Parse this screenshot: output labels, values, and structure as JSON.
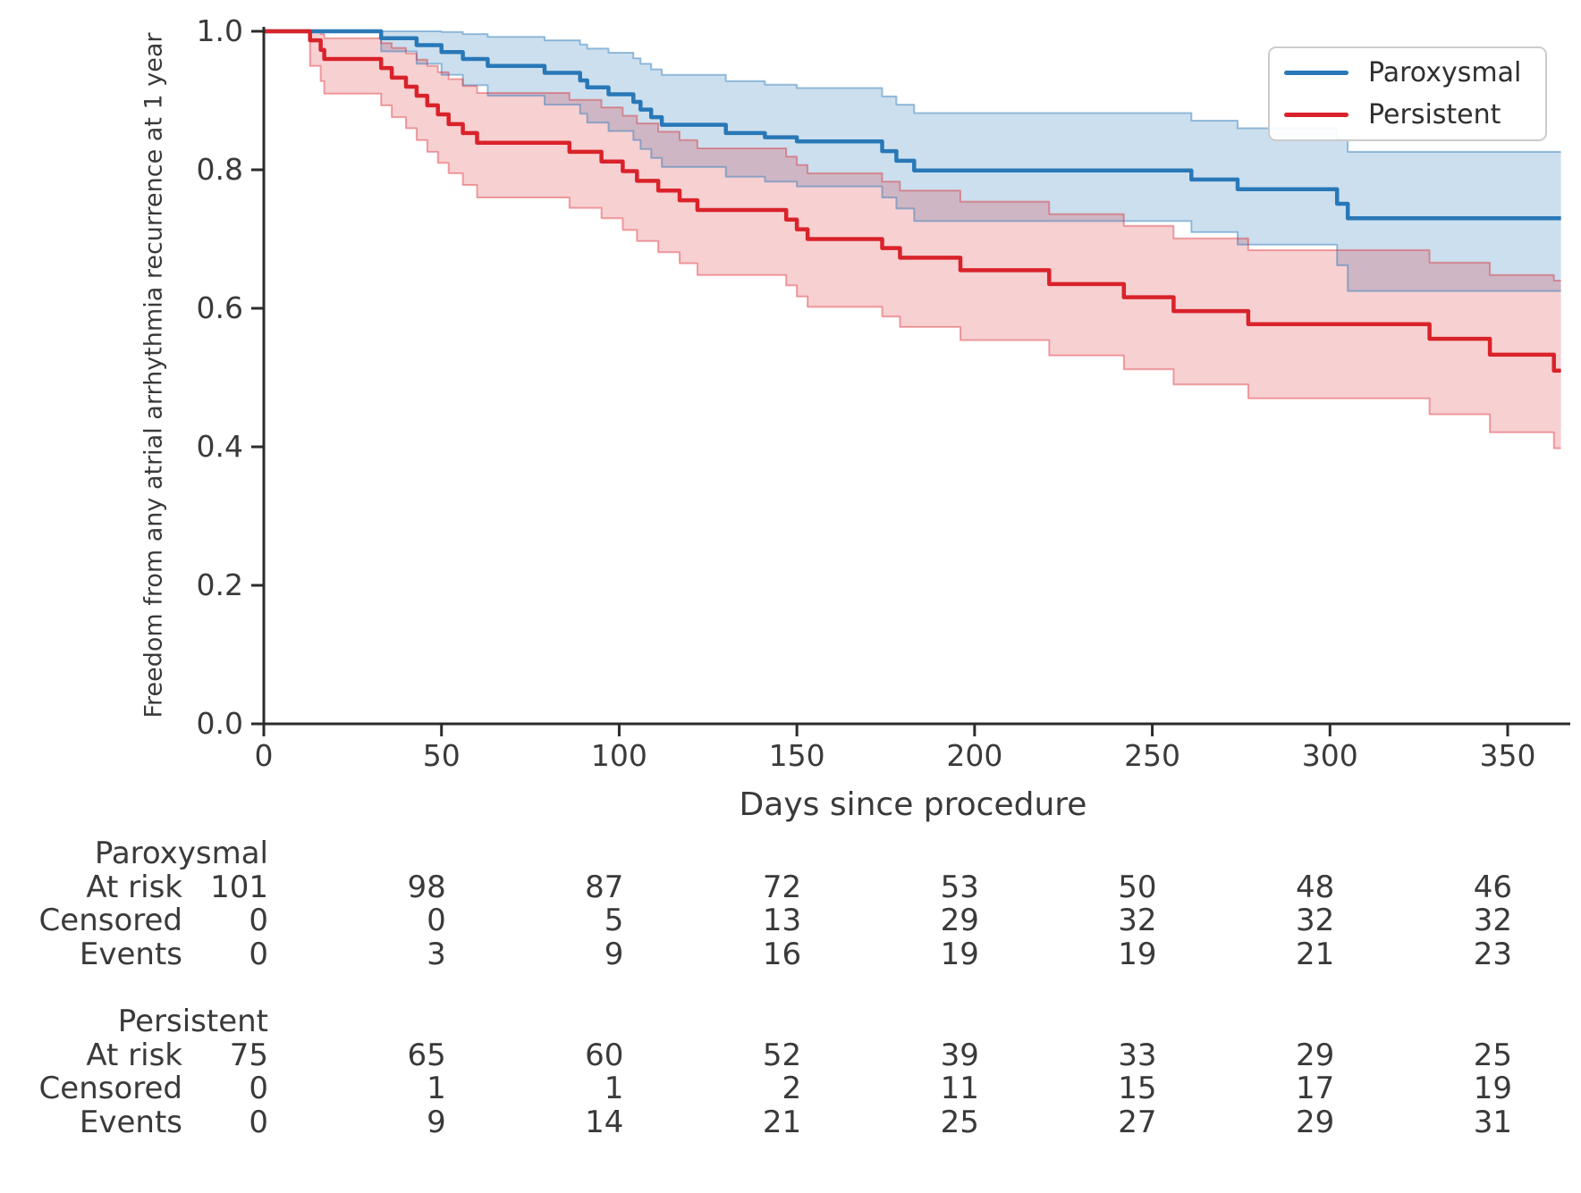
{
  "figure": {
    "y_axis_label": "Freedom from any atrial arrhythmia recurrence at 1 year",
    "x_axis_label": "Days since procedure",
    "x_tick_labels": [
      "0",
      "50",
      "100",
      "150",
      "200",
      "250",
      "300",
      "350"
    ],
    "x_tick_values": [
      0,
      50,
      100,
      150,
      200,
      250,
      300,
      350
    ],
    "y_tick_labels": [
      "0.0",
      "0.2",
      "0.4",
      "0.6",
      "0.8",
      "1.0"
    ],
    "y_tick_values": [
      0,
      0.2,
      0.4,
      0.6,
      0.8,
      1.0
    ],
    "colors": {
      "paroxysmal": "#2878b8",
      "persistent": "#d9222a",
      "paroxysmal_band_fill": "rgba(40,120,184,0.24)",
      "persistent_band_fill": "rgba(217,34,42,0.21)",
      "paroxysmal_band_edge": "rgba(40,120,184,0.45)",
      "persistent_band_edge": "rgba(217,34,42,0.40)",
      "axis": "#2b2b2b",
      "text": "#3a3a3a"
    }
  },
  "legend": {
    "items": [
      {
        "label": "Paroxysmal",
        "color": "#2878b8"
      },
      {
        "label": "Persistent",
        "color": "#d9222a"
      }
    ]
  },
  "chart_data": {
    "type": "line",
    "subtype": "kaplan-meier-step",
    "title": "",
    "xlabel": "Days since procedure",
    "ylabel": "Freedom from any atrial arrhythmia recurrence at 1 year",
    "xlim": [
      0,
      365
    ],
    "ylim": [
      0.0,
      1.0
    ],
    "grid": false,
    "legend_position": "upper right",
    "series": [
      {
        "name": "Paroxysmal",
        "color": "#2878b8",
        "points": [
          [
            0,
            1.0
          ],
          [
            33,
            0.99
          ],
          [
            43,
            0.98
          ],
          [
            50,
            0.97
          ],
          [
            56,
            0.96
          ],
          [
            63,
            0.95
          ],
          [
            79,
            0.94
          ],
          [
            89,
            0.929
          ],
          [
            91,
            0.919
          ],
          [
            97,
            0.909
          ],
          [
            104,
            0.898
          ],
          [
            106,
            0.887
          ],
          [
            109,
            0.876
          ],
          [
            112,
            0.865
          ],
          [
            130,
            0.853
          ],
          [
            141,
            0.847
          ],
          [
            150,
            0.841
          ],
          [
            174,
            0.827
          ],
          [
            178,
            0.813
          ],
          [
            183,
            0.799
          ],
          [
            261,
            0.786
          ],
          [
            274,
            0.772
          ],
          [
            302,
            0.751
          ],
          [
            305,
            0.73
          ],
          [
            365,
            0.73
          ]
        ],
        "ci_upper": [
          [
            0,
            1.0
          ],
          [
            33,
            1.0
          ],
          [
            43,
            1.0
          ],
          [
            50,
            0.999
          ],
          [
            56,
            0.996
          ],
          [
            63,
            0.992
          ],
          [
            79,
            0.987
          ],
          [
            89,
            0.981
          ],
          [
            91,
            0.975
          ],
          [
            97,
            0.969
          ],
          [
            104,
            0.961
          ],
          [
            106,
            0.953
          ],
          [
            109,
            0.945
          ],
          [
            112,
            0.937
          ],
          [
            130,
            0.928
          ],
          [
            141,
            0.923
          ],
          [
            150,
            0.918
          ],
          [
            174,
            0.906
          ],
          [
            178,
            0.894
          ],
          [
            183,
            0.882
          ],
          [
            261,
            0.871
          ],
          [
            274,
            0.86
          ],
          [
            302,
            0.845
          ],
          [
            305,
            0.826
          ],
          [
            365,
            0.826
          ]
        ],
        "ci_lower": [
          [
            0,
            1.0
          ],
          [
            33,
            0.971
          ],
          [
            43,
            0.953
          ],
          [
            50,
            0.937
          ],
          [
            56,
            0.922
          ],
          [
            63,
            0.907
          ],
          [
            79,
            0.894
          ],
          [
            89,
            0.881
          ],
          [
            91,
            0.868
          ],
          [
            97,
            0.856
          ],
          [
            104,
            0.843
          ],
          [
            106,
            0.83
          ],
          [
            109,
            0.817
          ],
          [
            112,
            0.804
          ],
          [
            130,
            0.79
          ],
          [
            141,
            0.783
          ],
          [
            150,
            0.776
          ],
          [
            174,
            0.76
          ],
          [
            178,
            0.744
          ],
          [
            183,
            0.726
          ],
          [
            261,
            0.71
          ],
          [
            274,
            0.692
          ],
          [
            302,
            0.662
          ],
          [
            305,
            0.625
          ],
          [
            365,
            0.625
          ]
        ]
      },
      {
        "name": "Persistent",
        "color": "#d9222a",
        "points": [
          [
            0,
            1.0
          ],
          [
            13,
            0.987
          ],
          [
            16,
            0.973
          ],
          [
            17,
            0.96
          ],
          [
            33,
            0.947
          ],
          [
            36,
            0.933
          ],
          [
            40,
            0.92
          ],
          [
            43,
            0.907
          ],
          [
            46,
            0.893
          ],
          [
            49,
            0.88
          ],
          [
            52,
            0.866
          ],
          [
            56,
            0.853
          ],
          [
            60,
            0.839
          ],
          [
            86,
            0.826
          ],
          [
            95,
            0.812
          ],
          [
            101,
            0.798
          ],
          [
            105,
            0.784
          ],
          [
            111,
            0.77
          ],
          [
            117,
            0.756
          ],
          [
            122,
            0.742
          ],
          [
            147,
            0.728
          ],
          [
            150,
            0.714
          ],
          [
            153,
            0.7
          ],
          [
            174,
            0.687
          ],
          [
            179,
            0.673
          ],
          [
            196,
            0.655
          ],
          [
            221,
            0.635
          ],
          [
            242,
            0.616
          ],
          [
            256,
            0.596
          ],
          [
            277,
            0.577
          ],
          [
            328,
            0.556
          ],
          [
            345,
            0.533
          ],
          [
            363,
            0.51
          ],
          [
            365,
            0.51
          ]
        ],
        "ci_upper": [
          [
            0,
            1.0
          ],
          [
            13,
            0.999
          ],
          [
            16,
            0.996
          ],
          [
            17,
            0.99
          ],
          [
            33,
            0.983
          ],
          [
            36,
            0.976
          ],
          [
            40,
            0.968
          ],
          [
            43,
            0.959
          ],
          [
            46,
            0.95
          ],
          [
            49,
            0.941
          ],
          [
            52,
            0.931
          ],
          [
            56,
            0.921
          ],
          [
            60,
            0.911
          ],
          [
            86,
            0.901
          ],
          [
            95,
            0.89
          ],
          [
            101,
            0.878
          ],
          [
            105,
            0.867
          ],
          [
            111,
            0.855
          ],
          [
            117,
            0.843
          ],
          [
            122,
            0.831
          ],
          [
            147,
            0.819
          ],
          [
            150,
            0.807
          ],
          [
            153,
            0.795
          ],
          [
            174,
            0.783
          ],
          [
            179,
            0.77
          ],
          [
            196,
            0.754
          ],
          [
            221,
            0.736
          ],
          [
            242,
            0.719
          ],
          [
            256,
            0.701
          ],
          [
            277,
            0.684
          ],
          [
            328,
            0.666
          ],
          [
            345,
            0.648
          ],
          [
            363,
            0.64
          ],
          [
            365,
            0.64
          ]
        ],
        "ci_lower": [
          [
            0,
            1.0
          ],
          [
            13,
            0.95
          ],
          [
            16,
            0.928
          ],
          [
            17,
            0.91
          ],
          [
            33,
            0.893
          ],
          [
            36,
            0.876
          ],
          [
            40,
            0.86
          ],
          [
            43,
            0.843
          ],
          [
            46,
            0.826
          ],
          [
            49,
            0.81
          ],
          [
            52,
            0.795
          ],
          [
            56,
            0.778
          ],
          [
            60,
            0.76
          ],
          [
            86,
            0.745
          ],
          [
            95,
            0.73
          ],
          [
            101,
            0.713
          ],
          [
            105,
            0.697
          ],
          [
            111,
            0.681
          ],
          [
            117,
            0.665
          ],
          [
            122,
            0.648
          ],
          [
            147,
            0.633
          ],
          [
            150,
            0.617
          ],
          [
            153,
            0.602
          ],
          [
            174,
            0.588
          ],
          [
            179,
            0.573
          ],
          [
            196,
            0.554
          ],
          [
            221,
            0.532
          ],
          [
            242,
            0.512
          ],
          [
            256,
            0.49
          ],
          [
            277,
            0.47
          ],
          [
            328,
            0.447
          ],
          [
            345,
            0.421
          ],
          [
            363,
            0.398
          ],
          [
            365,
            0.398
          ]
        ]
      }
    ]
  },
  "risk_table": {
    "time_points": [
      0,
      50,
      100,
      150,
      200,
      250,
      300,
      350
    ],
    "row_labels": [
      "At risk",
      "Censored",
      "Events"
    ],
    "groups": [
      {
        "name": "Paroxysmal",
        "rows": [
          {
            "label": "At risk",
            "values": [
              101,
              98,
              87,
              72,
              53,
              50,
              48,
              46
            ]
          },
          {
            "label": "Censored",
            "values": [
              0,
              0,
              5,
              13,
              29,
              32,
              32,
              32
            ]
          },
          {
            "label": "Events",
            "values": [
              0,
              3,
              9,
              16,
              19,
              19,
              21,
              23
            ]
          }
        ]
      },
      {
        "name": "Persistent",
        "rows": [
          {
            "label": "At risk",
            "values": [
              75,
              65,
              60,
              52,
              39,
              33,
              29,
              25
            ]
          },
          {
            "label": "Censored",
            "values": [
              0,
              1,
              1,
              2,
              11,
              15,
              17,
              19
            ]
          },
          {
            "label": "Events",
            "values": [
              0,
              9,
              14,
              21,
              25,
              27,
              29,
              31
            ]
          }
        ]
      }
    ]
  }
}
